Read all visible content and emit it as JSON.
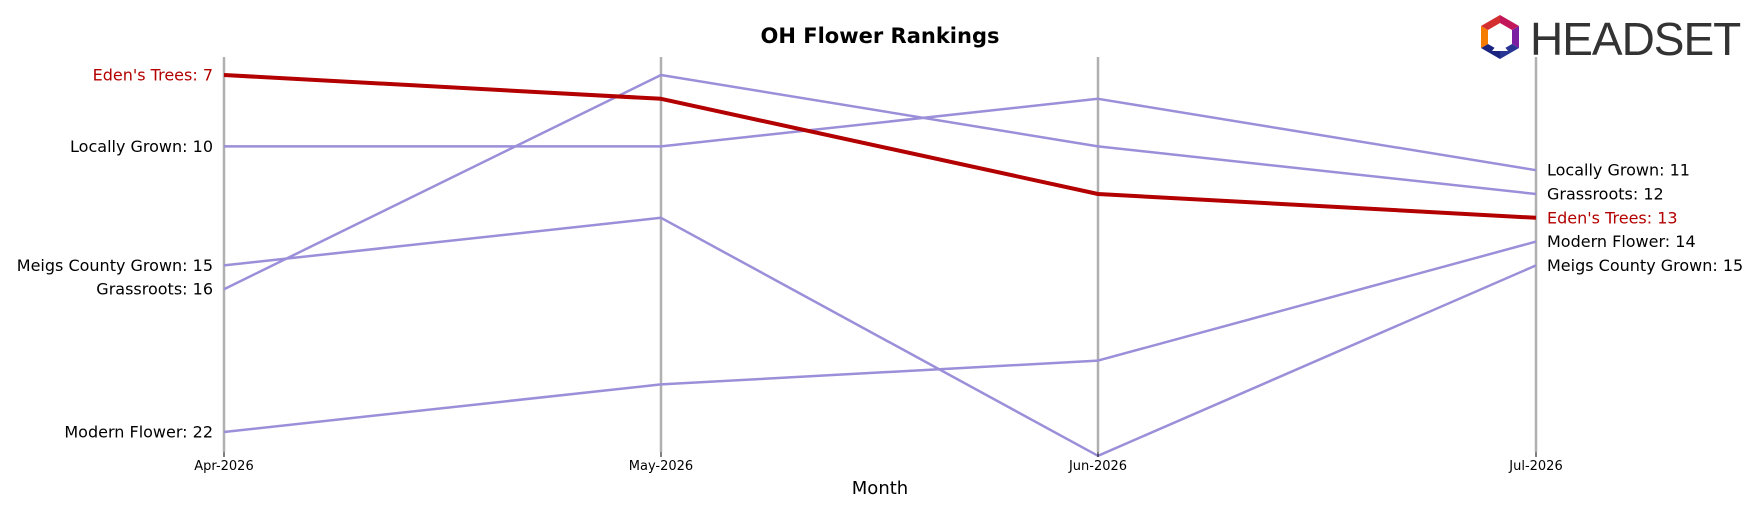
{
  "chart_data": {
    "type": "line",
    "title": "OH Flower Rankings",
    "xlabel": "Month",
    "ylabel": "",
    "y_inverted": true,
    "y_meaning": "rank",
    "grid": "vertical gridlines at each month",
    "x": [
      "Apr-2026",
      "May-2026",
      "Jun-2026",
      "Jul-2026"
    ],
    "highlight_color": "#b30000",
    "other_color": "#9b8fd9",
    "series": [
      {
        "name": "Eden's Trees",
        "values": [
          7,
          8,
          12,
          13
        ],
        "highlight": true,
        "start_label": "Eden's Trees: 7",
        "end_label": "Eden's Trees: 13"
      },
      {
        "name": "Locally Grown",
        "values": [
          10,
          10,
          8,
          11
        ],
        "highlight": false,
        "start_label": "Locally Grown: 10",
        "end_label": "Locally Grown: 11"
      },
      {
        "name": "Grassroots",
        "values": [
          16,
          7,
          10,
          12
        ],
        "highlight": false,
        "start_label": "Grassroots: 16",
        "end_label": "Grassroots: 12"
      },
      {
        "name": "Meigs County Grown",
        "values": [
          15,
          13,
          23,
          15
        ],
        "highlight": false,
        "start_label": "Meigs County Grown: 15",
        "end_label": "Meigs County Grown: 15"
      },
      {
        "name": "Modern Flower",
        "values": [
          22,
          20,
          19,
          14
        ],
        "highlight": false,
        "start_label": "Modern Flower: 22",
        "end_label": "Modern Flower: 14"
      }
    ]
  },
  "logo": {
    "text": "HEADSET",
    "icon": "headset-hexagon-logo-icon"
  }
}
